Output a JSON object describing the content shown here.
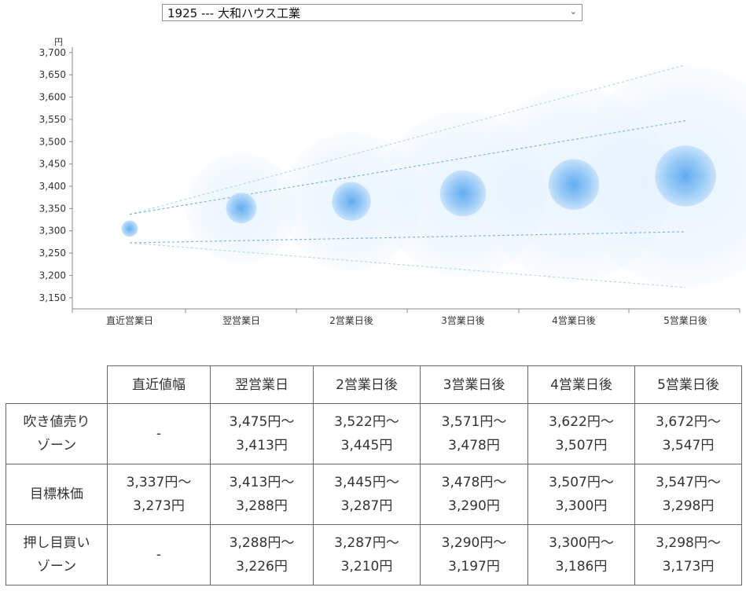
{
  "selector": {
    "value": "1925 --- 大和ハウス工業"
  },
  "chart_data": {
    "type": "scatter",
    "title": "",
    "ylabel": "円",
    "xlabel": "",
    "ylim": [
      3125,
      3712
    ],
    "yticks": [
      3150,
      3200,
      3250,
      3300,
      3350,
      3400,
      3450,
      3500,
      3550,
      3600,
      3650,
      3700
    ],
    "ytick_labels": [
      "3,150",
      "3,200",
      "3,250",
      "3,300",
      "3,350",
      "3,400",
      "3,450",
      "3,500",
      "3,550",
      "3,600",
      "3,650",
      "3,700"
    ],
    "categories": [
      "直近営業日",
      "翌営業日",
      "2営業日後",
      "3営業日後",
      "4営業日後",
      "5営業日後"
    ],
    "center": [
      3305,
      3351,
      3366,
      3384,
      3404,
      3423
    ],
    "target_high": [
      3337,
      3413,
      3445,
      3478,
      3507,
      3547
    ],
    "target_low": [
      3273,
      3288,
      3287,
      3290,
      3300,
      3298
    ],
    "outer_high": [
      3337,
      3475,
      3522,
      3571,
      3622,
      3672
    ],
    "outer_low": [
      3273,
      3226,
      3210,
      3197,
      3186,
      3173
    ],
    "colors": {
      "bubble": "#5aa8f0",
      "bubble_light": "#cfe5fb",
      "line": "#7ab6e8",
      "axis": "#888888"
    }
  },
  "table": {
    "headers": [
      "直近値幅",
      "翌営業日",
      "2営業日後",
      "3営業日後",
      "4営業日後",
      "5営業日後"
    ],
    "rows": [
      {
        "label": [
          "吹き値売り",
          "ゾーン"
        ],
        "cells": [
          [
            "-"
          ],
          [
            "3,475円～",
            "3,413円"
          ],
          [
            "3,522円～",
            "3,445円"
          ],
          [
            "3,571円～",
            "3,478円"
          ],
          [
            "3,622円～",
            "3,507円"
          ],
          [
            "3,672円～",
            "3,547円"
          ]
        ]
      },
      {
        "label": [
          "目標株価"
        ],
        "cells": [
          [
            "3,337円～",
            "3,273円"
          ],
          [
            "3,413円～",
            "3,288円"
          ],
          [
            "3,445円～",
            "3,287円"
          ],
          [
            "3,478円～",
            "3,290円"
          ],
          [
            "3,507円～",
            "3,300円"
          ],
          [
            "3,547円～",
            "3,298円"
          ]
        ]
      },
      {
        "label": [
          "押し目買い",
          "ゾーン"
        ],
        "cells": [
          [
            "-"
          ],
          [
            "3,288円～",
            "3,226円"
          ],
          [
            "3,287円～",
            "3,210円"
          ],
          [
            "3,290円～",
            "3,197円"
          ],
          [
            "3,300円～",
            "3,186円"
          ],
          [
            "3,298円～",
            "3,173円"
          ]
        ]
      }
    ]
  }
}
